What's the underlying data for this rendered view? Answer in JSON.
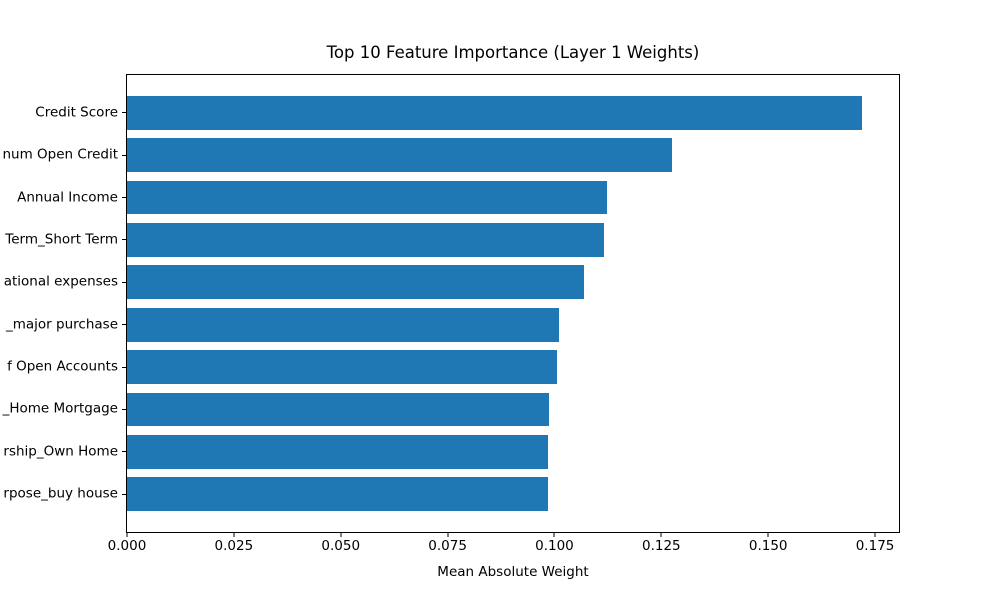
{
  "chart_data": {
    "type": "bar",
    "orientation": "horizontal",
    "title": "Top 10 Feature Importance (Layer 1 Weights)",
    "xlabel": "Mean Absolute Weight",
    "ylabel": "",
    "categories": [
      "Credit Score",
      "num Open Credit",
      "Annual Income",
      "Term_Short Term",
      "ational expenses",
      "_major purchase",
      "f Open Accounts",
      "_Home Mortgage",
      "rship_Own Home",
      "rpose_buy house"
    ],
    "values": [
      0.172,
      0.1274,
      0.1122,
      0.1115,
      0.1068,
      0.1011,
      0.1006,
      0.0987,
      0.0985,
      0.0984
    ],
    "xtick_labels": [
      "0.000",
      "0.025",
      "0.050",
      "0.075",
      "0.100",
      "0.125",
      "0.150",
      "0.175"
    ],
    "xtick_values": [
      0,
      0.025,
      0.05,
      0.075,
      0.1,
      0.125,
      0.15,
      0.175
    ],
    "xlim": [
      0,
      0.1806
    ],
    "grid": false,
    "legend": "none",
    "bar_color": "#1f77b4",
    "background_color": "#ffffff",
    "spine_color": "#000000",
    "text_color": "#000000"
  }
}
